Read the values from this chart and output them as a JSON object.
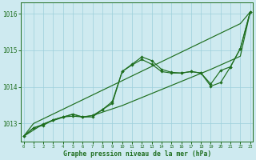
{
  "xlabel": "Graphe pression niveau de la mer (hPa)",
  "x": [
    0,
    1,
    2,
    3,
    4,
    5,
    6,
    7,
    8,
    9,
    10,
    11,
    12,
    13,
    14,
    15,
    16,
    17,
    18,
    19,
    20,
    21,
    22,
    23
  ],
  "line_straight1": [
    1012.65,
    1013.0,
    1013.13,
    1013.26,
    1013.39,
    1013.52,
    1013.65,
    1013.78,
    1013.91,
    1014.04,
    1014.17,
    1014.3,
    1014.43,
    1014.56,
    1014.69,
    1014.82,
    1014.95,
    1015.08,
    1015.21,
    1015.34,
    1015.47,
    1015.6,
    1015.73,
    1016.05
  ],
  "line_straight2": [
    1012.65,
    1012.82,
    1012.99,
    1013.08,
    1013.17,
    1013.26,
    1013.17,
    1013.22,
    1013.31,
    1013.4,
    1013.49,
    1013.6,
    1013.71,
    1013.82,
    1013.93,
    1014.04,
    1014.15,
    1014.26,
    1014.37,
    1014.48,
    1014.6,
    1014.72,
    1014.84,
    1016.05
  ],
  "line_curve1": [
    1012.65,
    1012.88,
    1012.95,
    1013.1,
    1013.18,
    1013.2,
    1013.18,
    1013.22,
    1013.38,
    1013.55,
    1014.42,
    1014.62,
    1014.82,
    1014.72,
    1014.48,
    1014.4,
    1014.38,
    1014.42,
    1014.38,
    1014.02,
    1014.12,
    1014.55,
    1015.05,
    1016.05
  ],
  "line_curve2": [
    1012.65,
    1012.88,
    1012.98,
    1013.1,
    1013.18,
    1013.25,
    1013.18,
    1013.18,
    1013.38,
    1013.6,
    1014.42,
    1014.6,
    1014.75,
    1014.62,
    1014.42,
    1014.38,
    1014.38,
    1014.42,
    1014.38,
    1014.08,
    1014.45,
    1014.55,
    1015.05,
    1016.05
  ],
  "bg_color": "#ceeaf0",
  "grid_color": "#9dcfdb",
  "line_color": "#1e6e1e",
  "ylim_min": 1012.5,
  "ylim_max": 1016.3,
  "yticks": [
    1013,
    1014,
    1015,
    1016
  ]
}
